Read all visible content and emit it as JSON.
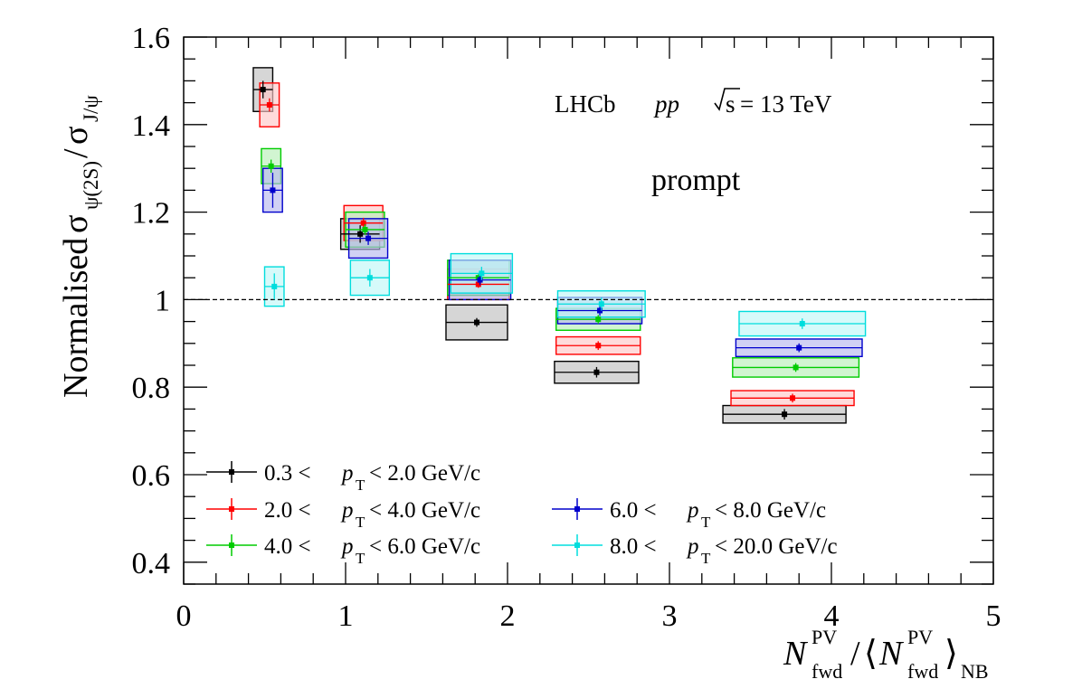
{
  "chart_data": {
    "type": "scatter",
    "annotations": {
      "experiment": "LHCb",
      "system": "pp",
      "energy_root": "s",
      "energy_value": "= 13 TeV",
      "label": "prompt"
    },
    "ylabel": {
      "prefix": "Normalised",
      "sigma": "σ",
      "num_sub": "ψ(2S)",
      "slash": "/",
      "den_sub": "J/ψ"
    },
    "xlabel": {
      "n": "N",
      "sup": "PV",
      "sub": "fwd",
      "slash": "/",
      "open": "⟨",
      "close": "⟩",
      "nb": "NB"
    },
    "xlim": [
      0,
      5
    ],
    "ylim": [
      0.35,
      1.6
    ],
    "xticks": [
      0,
      1,
      2,
      3,
      4,
      5
    ],
    "xtick_labels": [
      "0",
      "1",
      "2",
      "3",
      "4",
      "5"
    ],
    "yticks": [
      0.4,
      0.6,
      0.8,
      1.0,
      1.2,
      1.4,
      1.6
    ],
    "ytick_labels": [
      "0.4",
      "0.6",
      "0.8",
      "1",
      "1.2",
      "1.4",
      "1.6"
    ],
    "reference_line": 1.0,
    "series": [
      {
        "name": "0.3 < pT < 2.0 GeV/c",
        "label_a": "0.3 <",
        "label_p": "p",
        "label_t": "T",
        "label_b": "< 2.0 GeV/c",
        "color": "#000000",
        "fill": "#c0c0c0",
        "points": [
          {
            "x": 0.49,
            "y": 1.48,
            "xe": 0.06,
            "ye": 0.02,
            "syst": 0.05
          },
          {
            "x": 1.09,
            "y": 1.15,
            "xe": 0.12,
            "ye": 0.02,
            "syst": 0.035
          },
          {
            "x": 1.81,
            "y": 0.948,
            "xe": 0.19,
            "ye": 0.01,
            "syst": 0.04
          },
          {
            "x": 2.55,
            "y": 0.834,
            "xe": 0.26,
            "ye": 0.012,
            "syst": 0.025
          },
          {
            "x": 3.71,
            "y": 0.738,
            "xe": 0.38,
            "ye": 0.012,
            "syst": 0.02
          }
        ]
      },
      {
        "name": "2.0 < pT < 4.0 GeV/c",
        "label_a": "2.0 <",
        "label_p": "p",
        "label_t": "T",
        "label_b": "< 4.0 GeV/c",
        "color": "#ff0000",
        "fill": "#ffc8c8",
        "points": [
          {
            "x": 0.53,
            "y": 1.445,
            "xe": 0.06,
            "ye": 0.015,
            "syst": 0.05
          },
          {
            "x": 1.11,
            "y": 1.175,
            "xe": 0.12,
            "ye": 0.012,
            "syst": 0.04
          },
          {
            "x": 1.82,
            "y": 1.035,
            "xe": 0.19,
            "ye": 0.008,
            "syst": 0.035
          },
          {
            "x": 2.56,
            "y": 0.895,
            "xe": 0.26,
            "ye": 0.01,
            "syst": 0.02
          },
          {
            "x": 3.76,
            "y": 0.775,
            "xe": 0.38,
            "ye": 0.01,
            "syst": 0.017
          }
        ]
      },
      {
        "name": "4.0 < pT < 6.0 GeV/c",
        "label_a": "4.0 <",
        "label_p": "p",
        "label_t": "T",
        "label_b": "< 6.0 GeV/c",
        "color": "#00cc00",
        "fill": "#b8f0b8",
        "points": [
          {
            "x": 0.54,
            "y": 1.305,
            "xe": 0.06,
            "ye": 0.015,
            "syst": 0.04
          },
          {
            "x": 1.12,
            "y": 1.16,
            "xe": 0.12,
            "ye": 0.012,
            "syst": 0.04
          },
          {
            "x": 1.82,
            "y": 1.05,
            "xe": 0.19,
            "ye": 0.008,
            "syst": 0.04
          },
          {
            "x": 2.56,
            "y": 0.955,
            "xe": 0.26,
            "ye": 0.01,
            "syst": 0.025
          },
          {
            "x": 3.78,
            "y": 0.845,
            "xe": 0.39,
            "ye": 0.01,
            "syst": 0.022
          }
        ]
      },
      {
        "name": "6.0 < pT < 8.0 GeV/c",
        "label_a": "6.0 <",
        "label_p": "p",
        "label_t": "T",
        "label_b": "< 8.0 GeV/c",
        "color": "#0000cc",
        "fill": "#b8b8ee",
        "points": [
          {
            "x": 0.55,
            "y": 1.25,
            "xe": 0.06,
            "ye": 0.04,
            "syst": 0.05
          },
          {
            "x": 1.14,
            "y": 1.14,
            "xe": 0.12,
            "ye": 0.015,
            "syst": 0.045
          },
          {
            "x": 1.83,
            "y": 1.045,
            "xe": 0.19,
            "ye": 0.012,
            "syst": 0.045
          },
          {
            "x": 2.57,
            "y": 0.975,
            "xe": 0.26,
            "ye": 0.012,
            "syst": 0.03
          },
          {
            "x": 3.8,
            "y": 0.89,
            "xe": 0.39,
            "ye": 0.01,
            "syst": 0.02
          }
        ]
      },
      {
        "name": "8.0 < pT < 20.0 GeV/c",
        "label_a": "8.0 <",
        "label_p": "p",
        "label_t": "T",
        "label_b": "< 20.0 GeV/c",
        "color": "#00dddd",
        "fill": "#c0f8f8",
        "points": [
          {
            "x": 0.56,
            "y": 1.03,
            "xe": 0.06,
            "ye": 0.03,
            "syst": 0.045
          },
          {
            "x": 1.15,
            "y": 1.05,
            "xe": 0.12,
            "ye": 0.02,
            "syst": 0.04
          },
          {
            "x": 1.84,
            "y": 1.06,
            "xe": 0.19,
            "ye": 0.015,
            "syst": 0.045
          },
          {
            "x": 2.58,
            "y": 0.99,
            "xe": 0.27,
            "ye": 0.015,
            "syst": 0.03
          },
          {
            "x": 3.82,
            "y": 0.945,
            "xe": 0.39,
            "ye": 0.012,
            "syst": 0.028
          }
        ]
      }
    ]
  }
}
